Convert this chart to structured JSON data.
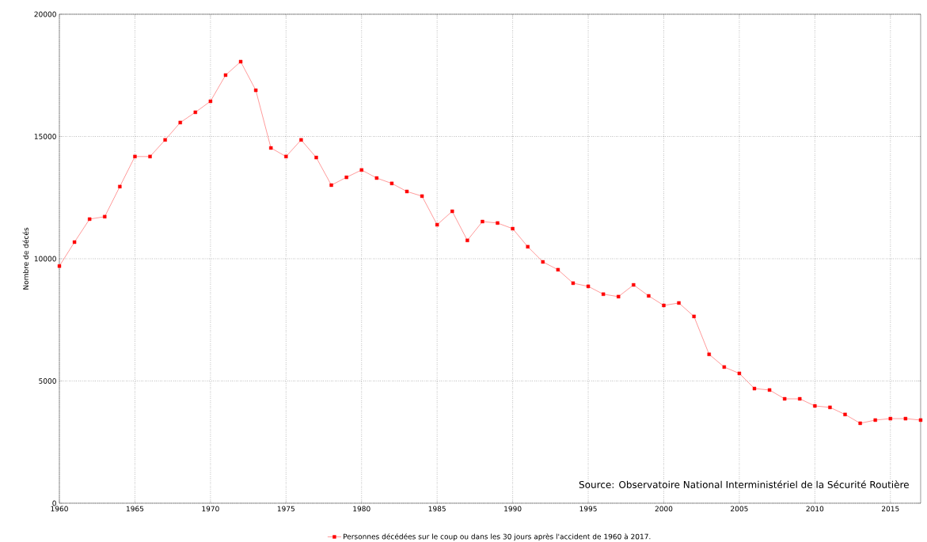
{
  "chart_data": {
    "type": "line",
    "ylabel": "Nombre de décés",
    "x": [
      1960,
      1961,
      1962,
      1963,
      1964,
      1965,
      1966,
      1967,
      1968,
      1969,
      1970,
      1971,
      1972,
      1973,
      1974,
      1975,
      1976,
      1977,
      1978,
      1979,
      1980,
      1981,
      1982,
      1983,
      1984,
      1985,
      1986,
      1987,
      1988,
      1989,
      1990,
      1991,
      1992,
      1993,
      1994,
      1995,
      1996,
      1997,
      1998,
      1999,
      2000,
      2001,
      2002,
      2003,
      2004,
      2005,
      2006,
      2007,
      2008,
      2009,
      2010,
      2011,
      2012,
      2013,
      2014,
      2015,
      2016,
      2017
    ],
    "series": [
      {
        "name": "Personnes décédées sur le coup ou dans les 30 jours après l'accident de 1960 à 2017.",
        "color": "#ff0000",
        "values": [
          9700,
          10680,
          11620,
          11720,
          12950,
          14180,
          14180,
          14860,
          15570,
          15990,
          16440,
          17510,
          18060,
          16890,
          14530,
          14180,
          14860,
          14140,
          13010,
          13330,
          13630,
          13300,
          13080,
          12750,
          12560,
          11390,
          11940,
          10750,
          11520,
          11460,
          11230,
          10490,
          9870,
          9550,
          9000,
          8870,
          8550,
          8450,
          8930,
          8480,
          8090,
          8190,
          7640,
          6090,
          5570,
          5310,
          4690,
          4630,
          4270,
          4270,
          3980,
          3920,
          3630,
          3270,
          3400,
          3460,
          3460,
          3400
        ]
      }
    ],
    "xlim": [
      1960,
      2017
    ],
    "ylim": [
      0,
      20000
    ],
    "xticks": [
      1960,
      1965,
      1970,
      1975,
      1980,
      1985,
      1990,
      1995,
      2000,
      2005,
      2010,
      2015
    ],
    "yticks": [
      0,
      5000,
      10000,
      15000,
      20000
    ],
    "grid": true,
    "legend": "bottom",
    "marker": "square",
    "line_style": "solid",
    "annotations": [
      "Source: Observatoire National Interministériel de la Sécurité Routière"
    ]
  }
}
